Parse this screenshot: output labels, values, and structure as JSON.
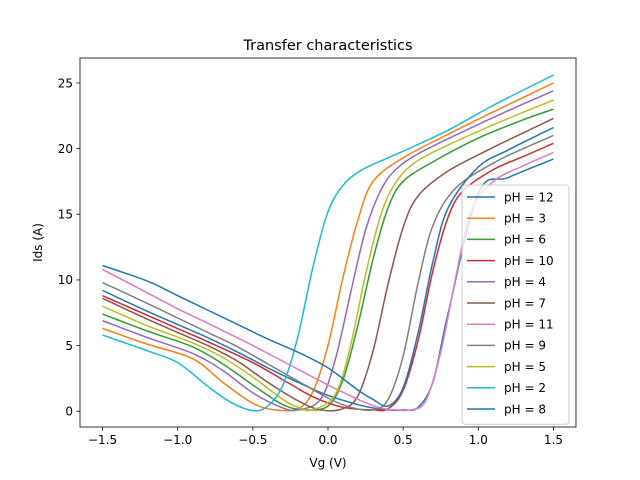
{
  "chart_data": {
    "type": "line",
    "title": "Transfer characteristics",
    "xlabel": "Vg (V)",
    "ylabel": "Ids (A)",
    "xlim": [
      -1.65,
      1.65
    ],
    "ylim": [
      -1.2,
      26.9
    ],
    "xticks": [
      -1.5,
      -1.0,
      -0.5,
      0.0,
      0.5,
      1.0,
      1.5
    ],
    "xtick_labels": [
      "−1.5",
      "−1.0",
      "−0.5",
      "0.0",
      "0.5",
      "1.0",
      "1.5"
    ],
    "yticks": [
      0,
      5,
      10,
      15,
      20,
      25
    ],
    "ytick_labels": [
      "0",
      "5",
      "10",
      "15",
      "20",
      "25"
    ],
    "grid": false,
    "legend_position": "lower-right",
    "series": [
      {
        "name": "pH = 12",
        "color": "#1f77b4",
        "x": [
          -1.5,
          -1.2,
          -1.0,
          -0.8,
          -0.6,
          -0.4,
          -0.2,
          0.0,
          0.2,
          0.3,
          0.4,
          0.5,
          0.6,
          0.7,
          0.8,
          1.0,
          1.2,
          1.5
        ],
        "values": [
          9.2,
          7.6,
          6.6,
          5.6,
          4.5,
          3.3,
          2.2,
          1.2,
          0.5,
          0.25,
          0.1,
          0.1,
          0.3,
          2.3,
          7.5,
          16.6,
          17.8,
          19.2
        ]
      },
      {
        "name": "pH = 3",
        "color": "#ff7f0e",
        "x": [
          -1.5,
          -1.2,
          -0.9,
          -0.7,
          -0.5,
          -0.35,
          -0.2,
          -0.1,
          0.0,
          0.1,
          0.2,
          0.3,
          0.5,
          0.8,
          1.1,
          1.5
        ],
        "values": [
          6.3,
          5.1,
          4.0,
          2.2,
          0.6,
          0.1,
          0.2,
          1.5,
          5.0,
          10.2,
          14.6,
          17.5,
          19.3,
          21.1,
          22.8,
          25.0
        ]
      },
      {
        "name": "pH = 6",
        "color": "#2ca02c",
        "x": [
          -1.5,
          -1.2,
          -0.9,
          -0.7,
          -0.5,
          -0.3,
          -0.15,
          0.0,
          0.1,
          0.2,
          0.3,
          0.4,
          0.5,
          0.7,
          1.0,
          1.3,
          1.5
        ],
        "values": [
          7.4,
          6.1,
          4.9,
          3.6,
          2.0,
          0.5,
          0.1,
          0.4,
          2.4,
          6.6,
          11.6,
          15.5,
          17.5,
          19.0,
          20.8,
          22.2,
          23.0
        ]
      },
      {
        "name": "pH = 10",
        "color": "#d62728",
        "x": [
          -1.5,
          -1.2,
          -1.0,
          -0.8,
          -0.5,
          -0.3,
          -0.1,
          0.1,
          0.3,
          0.4,
          0.5,
          0.6,
          0.7,
          0.8,
          0.9,
          1.1,
          1.3,
          1.5
        ],
        "values": [
          8.8,
          7.3,
          6.3,
          5.3,
          3.7,
          2.4,
          1.1,
          0.3,
          0.1,
          0.2,
          1.6,
          5.4,
          10.8,
          14.8,
          16.8,
          18.4,
          19.4,
          20.4
        ]
      },
      {
        "name": "pH = 4",
        "color": "#9467bd",
        "x": [
          -1.5,
          -1.2,
          -0.9,
          -0.7,
          -0.5,
          -0.3,
          -0.2,
          -0.05,
          0.05,
          0.15,
          0.25,
          0.35,
          0.45,
          0.6,
          0.9,
          1.2,
          1.5
        ],
        "values": [
          6.9,
          5.6,
          4.4,
          3.1,
          1.4,
          0.25,
          0.1,
          0.9,
          4.0,
          9.0,
          13.8,
          16.8,
          18.4,
          19.6,
          21.3,
          22.9,
          24.4
        ]
      },
      {
        "name": "pH = 7",
        "color": "#8c564b",
        "x": [
          -1.5,
          -1.2,
          -1.0,
          -0.8,
          -0.6,
          -0.4,
          -0.2,
          -0.05,
          0.1,
          0.2,
          0.3,
          0.4,
          0.5,
          0.6,
          0.8,
          1.1,
          1.3,
          1.5
        ],
        "values": [
          8.6,
          7.0,
          6.0,
          5.0,
          3.8,
          2.2,
          0.8,
          0.1,
          0.2,
          1.2,
          4.6,
          9.7,
          14.0,
          16.4,
          18.3,
          20.1,
          21.2,
          22.3
        ]
      },
      {
        "name": "pH = 11",
        "color": "#e377c2",
        "x": [
          -1.5,
          -1.2,
          -1.0,
          -0.8,
          -0.5,
          -0.2,
          0.0,
          0.2,
          0.35,
          0.45,
          0.55,
          0.65,
          0.75,
          0.85,
          0.95,
          1.1,
          1.3,
          1.5
        ],
        "values": [
          10.8,
          9.0,
          7.8,
          6.7,
          5.0,
          3.2,
          2.0,
          0.9,
          0.25,
          0.1,
          0.1,
          0.8,
          4.5,
          10.2,
          15.2,
          17.5,
          18.7,
          19.7
        ]
      },
      {
        "name": "pH = 9",
        "color": "#7f7f7f",
        "x": [
          -1.5,
          -1.2,
          -1.0,
          -0.8,
          -0.6,
          -0.4,
          -0.2,
          0.0,
          0.15,
          0.3,
          0.4,
          0.5,
          0.6,
          0.7,
          0.85,
          1.1,
          1.3,
          1.5
        ],
        "values": [
          9.8,
          8.2,
          7.1,
          6.0,
          4.9,
          3.6,
          2.3,
          1.0,
          0.3,
          0.1,
          0.9,
          4.2,
          9.8,
          14.2,
          17.0,
          18.9,
          20.0,
          21.0
        ]
      },
      {
        "name": "pH = 5",
        "color": "#bcbd22",
        "x": [
          -1.5,
          -1.2,
          -0.9,
          -0.7,
          -0.5,
          -0.3,
          -0.2,
          -0.1,
          0.05,
          0.15,
          0.25,
          0.35,
          0.45,
          0.6,
          0.9,
          1.2,
          1.5
        ],
        "values": [
          8.0,
          6.5,
          5.2,
          4.1,
          2.6,
          0.9,
          0.3,
          0.1,
          1.3,
          5.0,
          10.4,
          14.9,
          17.4,
          19.1,
          20.8,
          22.3,
          23.7
        ]
      },
      {
        "name": "pH = 2",
        "color": "#17becf",
        "x": [
          -1.5,
          -1.2,
          -1.0,
          -0.8,
          -0.65,
          -0.5,
          -0.4,
          -0.3,
          -0.2,
          -0.1,
          0.0,
          0.1,
          0.2,
          0.3,
          0.5,
          0.8,
          1.1,
          1.5
        ],
        "values": [
          5.8,
          4.6,
          3.7,
          1.9,
          0.7,
          0.05,
          0.4,
          2.0,
          5.7,
          11.0,
          15.2,
          17.2,
          18.2,
          18.8,
          19.8,
          21.4,
          23.3,
          25.6
        ]
      },
      {
        "name": "pH = 8",
        "color": "#1f77b4",
        "x": [
          -1.5,
          -1.2,
          -1.0,
          -0.8,
          -0.6,
          -0.4,
          -0.2,
          0.0,
          0.2,
          0.3,
          0.4,
          0.5,
          0.6,
          0.7,
          0.8,
          1.0,
          1.2,
          1.5
        ],
        "values": [
          11.1,
          9.9,
          8.8,
          7.7,
          6.6,
          5.5,
          4.5,
          3.3,
          1.6,
          0.9,
          0.4,
          1.8,
          6.0,
          11.5,
          15.5,
          18.6,
          19.9,
          21.6
        ]
      }
    ]
  }
}
